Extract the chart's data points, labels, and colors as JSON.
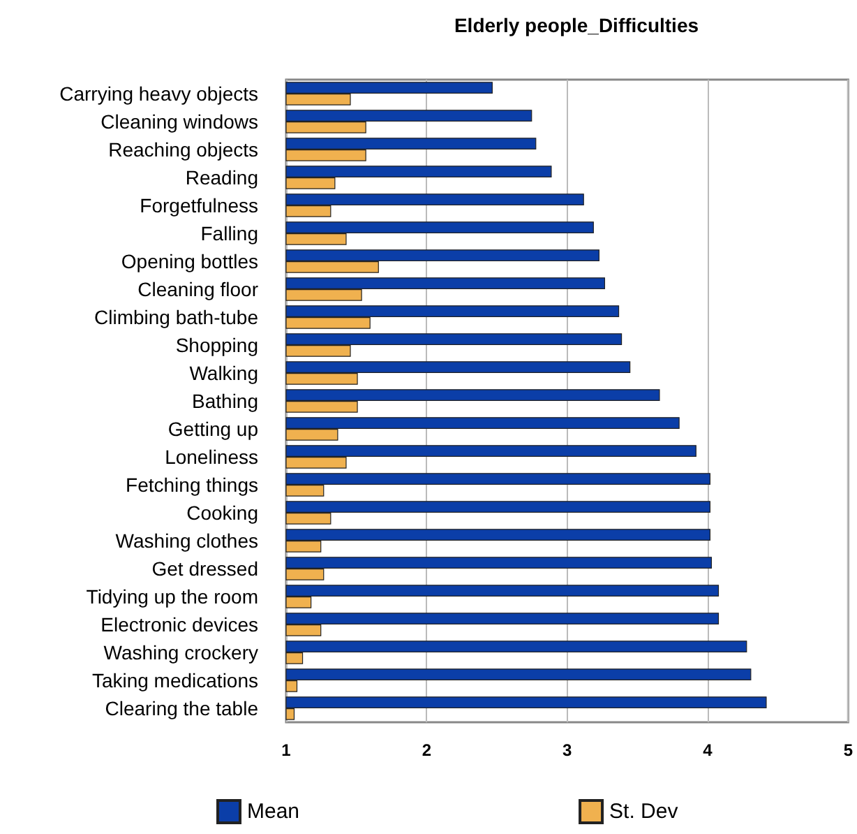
{
  "chart_data": {
    "type": "bar",
    "orientation": "horizontal",
    "title": "Elderly people_Difficulties",
    "categories": [
      "Carrying heavy objects",
      "Cleaning windows",
      "Reaching objects",
      "Reading",
      "Forgetfulness",
      "Falling",
      "Opening bottles",
      "Cleaning floor",
      "Climbing bath-tube",
      "Shopping",
      "Walking",
      "Bathing",
      "Getting up",
      "Loneliness",
      "Fetching things",
      "Cooking",
      "Washing clothes",
      "Get dressed",
      "Tidying up the room",
      "Electronic devices",
      "Washing crockery",
      "Taking medications",
      "Clearing the table"
    ],
    "series": [
      {
        "name": "Mean",
        "color": "#0b3ea8",
        "values": [
          2.47,
          2.75,
          2.78,
          2.89,
          3.12,
          3.19,
          3.23,
          3.27,
          3.37,
          3.39,
          3.45,
          3.66,
          3.8,
          3.92,
          4.02,
          4.02,
          4.02,
          4.03,
          4.08,
          4.08,
          4.28,
          4.31,
          4.42
        ]
      },
      {
        "name": "St. Dev",
        "color": "#f0b14f",
        "values": [
          1.46,
          1.57,
          1.57,
          1.35,
          1.32,
          1.43,
          1.66,
          1.54,
          1.6,
          1.46,
          1.51,
          1.51,
          1.37,
          1.43,
          1.27,
          1.32,
          1.25,
          1.27,
          1.18,
          1.25,
          1.12,
          1.08,
          1.06
        ]
      }
    ],
    "xlim": [
      1,
      5
    ],
    "xticks": [
      1,
      2,
      3,
      4,
      5
    ],
    "grid": "x",
    "legend": "bottom"
  }
}
